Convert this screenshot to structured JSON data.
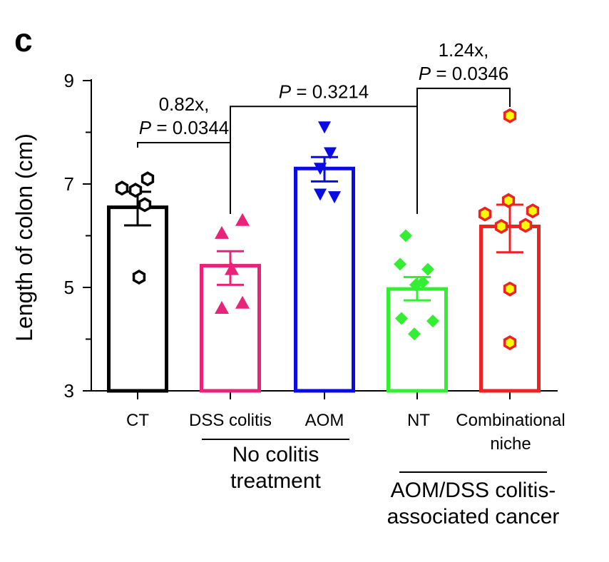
{
  "panel_label": "c",
  "chart_data": {
    "type": "bar",
    "ylabel": "Length of colon (cm)",
    "ylim": [
      3,
      9
    ],
    "yticks": [
      3,
      5,
      7,
      9
    ],
    "categories": [
      "CT",
      "DSS colitis",
      "AOM",
      "NT",
      "Combinational niche"
    ],
    "category_lines": [
      [
        "CT"
      ],
      [
        "DSS colitis"
      ],
      [
        "AOM"
      ],
      [
        "NT"
      ],
      [
        "Combinational",
        "niche"
      ]
    ],
    "groups": [
      {
        "lines": [
          "No colitis",
          "treatment"
        ],
        "spans": [
          1,
          2
        ]
      },
      {
        "lines": [
          "AOM/DSS colitis-",
          "associated cancer"
        ],
        "spans": [
          3,
          4
        ]
      }
    ],
    "bars": [
      {
        "category": "CT",
        "mean": 6.55,
        "err_low": 6.2,
        "err_high": 6.85,
        "color": "#000000",
        "marker": "hexagon-open",
        "points": [
          6.92,
          7.1,
          6.88,
          6.6,
          5.2
        ]
      },
      {
        "category": "DSS colitis",
        "mean": 5.42,
        "err_low": 5.05,
        "err_high": 5.7,
        "color": "#e8237a",
        "marker": "triangle-up",
        "points": [
          6.3,
          6.05,
          5.35,
          4.6,
          4.7
        ]
      },
      {
        "category": "AOM",
        "mean": 7.3,
        "err_low": 7.05,
        "err_high": 7.52,
        "color": "#0a0ae6",
        "marker": "triangle-down",
        "points": [
          8.1,
          7.6,
          7.3,
          6.75,
          6.8
        ]
      },
      {
        "category": "NT",
        "mean": 4.97,
        "err_low": 4.75,
        "err_high": 5.2,
        "color": "#33ee33",
        "marker": "diamond",
        "points": [
          6.0,
          5.35,
          5.45,
          5.05,
          5.1,
          4.4,
          4.35,
          4.1
        ]
      },
      {
        "category": "Combinational niche",
        "mean": 6.18,
        "err_low": 5.68,
        "err_high": 6.6,
        "color": "#ee2222",
        "marker": "hexagon-yellow",
        "points": [
          8.32,
          6.68,
          6.42,
          6.48,
          6.2,
          6.18,
          4.97,
          3.93
        ]
      }
    ],
    "comparisons": [
      {
        "from": 0,
        "to": 1,
        "label_lines": [
          "0.82x,",
          "P = 0.0344"
        ],
        "y": 7.8
      },
      {
        "from": 1,
        "to": 3,
        "label_lines": [
          "P = 0.3214"
        ],
        "y": 8.5
      },
      {
        "from": 3,
        "to": 4,
        "label_lines": [
          "1.24x,",
          "P = 0.0346"
        ],
        "y": 8.85
      }
    ],
    "colors": {
      "point_fill": "#ffff00"
    }
  }
}
